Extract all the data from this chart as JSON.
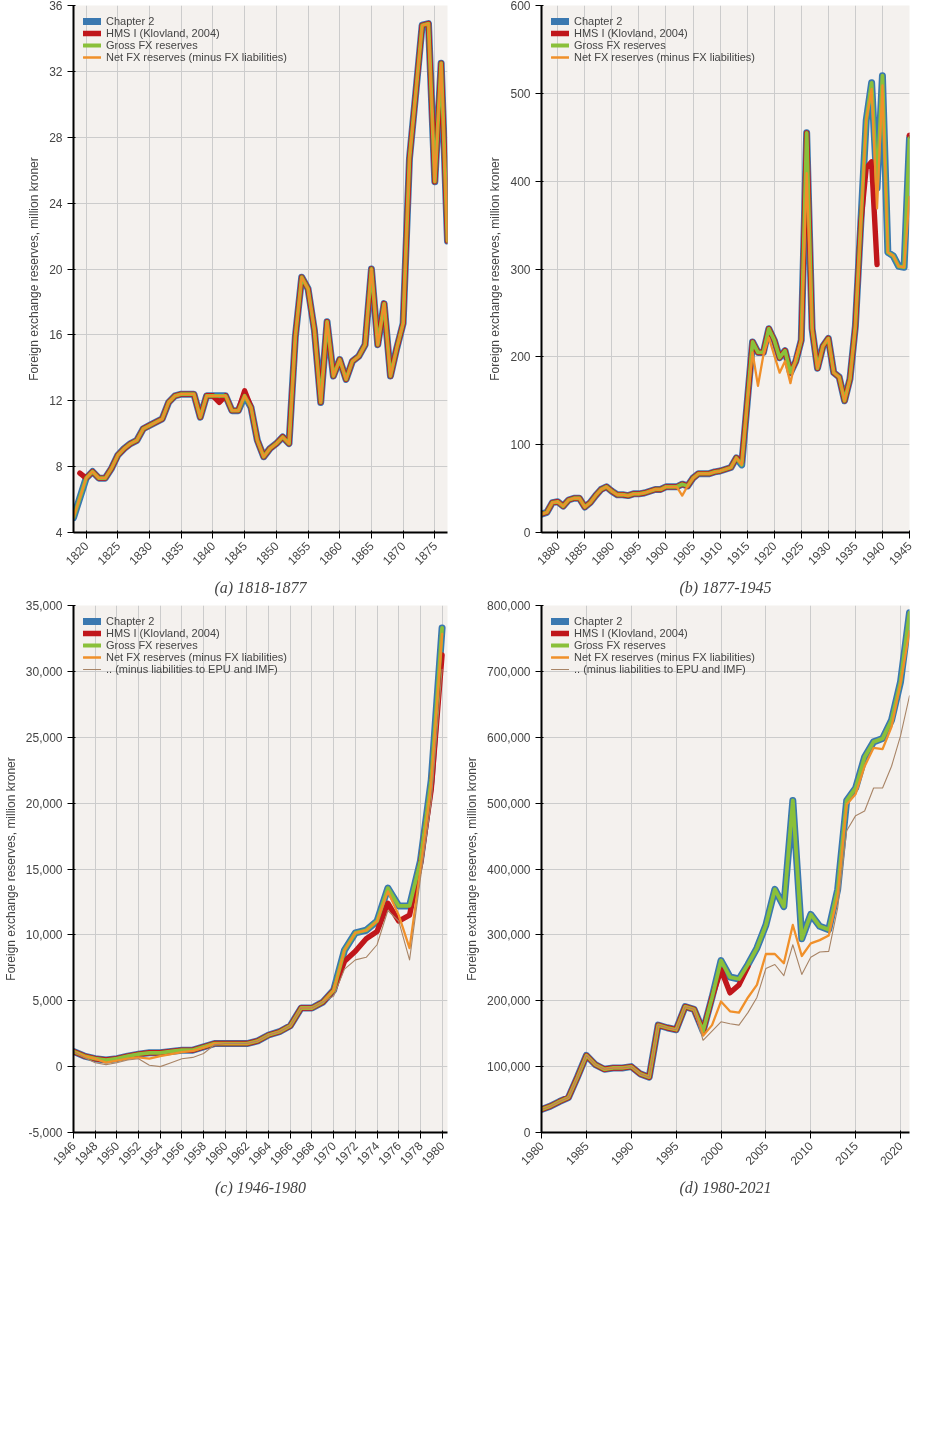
{
  "chart_data": [
    {
      "type": "line",
      "title": "(a) 1818-1877",
      "ylabel": "Foreign exchange reserves, million kroner",
      "grid": true,
      "legend": "top left",
      "xlim": [
        1818,
        1877
      ],
      "ylim": [
        4,
        36
      ],
      "xticks": [
        1820,
        1825,
        1830,
        1835,
        1840,
        1845,
        1850,
        1855,
        1860,
        1865,
        1870,
        1875
      ],
      "yticks": [
        4,
        8,
        12,
        16,
        20,
        24,
        28,
        32,
        36
      ],
      "x": [
        1818,
        1819,
        1820,
        1821,
        1822,
        1823,
        1824,
        1825,
        1826,
        1827,
        1828,
        1829,
        1830,
        1831,
        1832,
        1833,
        1834,
        1835,
        1836,
        1837,
        1838,
        1839,
        1840,
        1841,
        1842,
        1843,
        1844,
        1845,
        1846,
        1847,
        1848,
        1849,
        1850,
        1851,
        1852,
        1853,
        1854,
        1855,
        1856,
        1857,
        1858,
        1859,
        1860,
        1861,
        1862,
        1863,
        1864,
        1865,
        1866,
        1867,
        1868,
        1869,
        1870,
        1871,
        1872,
        1873,
        1874,
        1875,
        1876,
        1877
      ],
      "series": [
        {
          "name": "Chapter 2",
          "color": "#3a78b0",
          "values": [
            4.9,
            6.1,
            7.3,
            7.7,
            7.3,
            7.3,
            7.9,
            8.7,
            9.1,
            9.4,
            9.6,
            10.3,
            10.5,
            10.7,
            10.9,
            11.9,
            12.3,
            12.4,
            12.4,
            12.4,
            11.0,
            12.3,
            12.3,
            12.3,
            12.3,
            11.4,
            11.4,
            12.3,
            11.6,
            9.6,
            8.6,
            9.1,
            9.4,
            9.8,
            9.4,
            15.9,
            19.5,
            18.8,
            16.3,
            11.9,
            16.8,
            13.5,
            14.5,
            13.3,
            14.4,
            14.7,
            15.4,
            20.0,
            15.4,
            17.9,
            13.5,
            15.2,
            16.7,
            26.7,
            30.7,
            34.8,
            34.9,
            25.3,
            32.5,
            21.7
          ]
        },
        {
          "name": "HMS I (Klovland, 2004)",
          "color": "#c0161b",
          "values": [
            null,
            7.6,
            7.3,
            7.7,
            7.3,
            7.3,
            7.9,
            8.7,
            9.1,
            9.4,
            9.6,
            10.3,
            10.5,
            10.7,
            10.9,
            11.9,
            12.3,
            12.4,
            12.4,
            12.4,
            11.0,
            12.3,
            12.3,
            11.9,
            12.3,
            11.4,
            11.4,
            12.6,
            11.6,
            9.6,
            8.6,
            9.1,
            9.4,
            9.8,
            9.4,
            15.9,
            19.5,
            18.8,
            16.3,
            11.9,
            16.8,
            13.5,
            14.5,
            13.3,
            14.4,
            14.7,
            15.4,
            20.0,
            15.4,
            17.9,
            13.5,
            15.2,
            16.7,
            26.7,
            30.7,
            34.8,
            34.9,
            25.3,
            32.5,
            21.7
          ]
        },
        {
          "name": "Gross FX reserves",
          "color": "#8ac03a",
          "values": [
            4.9,
            6.1,
            7.3,
            7.7,
            7.3,
            7.3,
            7.9,
            8.7,
            9.1,
            9.4,
            9.6,
            10.3,
            10.5,
            10.7,
            10.9,
            11.9,
            12.3,
            12.4,
            12.4,
            12.4,
            11.0,
            12.3,
            12.3,
            12.3,
            12.3,
            11.4,
            11.4,
            12.3,
            11.6,
            9.6,
            8.6,
            9.1,
            9.4,
            9.8,
            9.4,
            15.9,
            19.5,
            18.8,
            16.3,
            11.9,
            16.8,
            13.5,
            14.5,
            13.3,
            14.4,
            14.7,
            15.4,
            20.0,
            15.4,
            17.9,
            13.5,
            15.2,
            16.7,
            26.7,
            30.7,
            34.8,
            34.9,
            25.3,
            32.5,
            21.7
          ]
        },
        {
          "name": "Net FX reserves (minus FX liabilities)",
          "color": "#f0902a",
          "values": [
            4.9,
            6.1,
            7.3,
            7.7,
            7.3,
            7.3,
            7.9,
            8.7,
            9.1,
            9.4,
            9.6,
            10.3,
            10.5,
            10.7,
            10.9,
            11.9,
            12.3,
            12.4,
            12.4,
            12.4,
            11.0,
            12.3,
            12.3,
            12.3,
            12.3,
            11.4,
            11.4,
            12.3,
            11.6,
            9.6,
            8.6,
            9.1,
            9.4,
            9.8,
            9.4,
            15.9,
            19.5,
            18.8,
            16.3,
            11.9,
            16.8,
            13.5,
            14.5,
            13.3,
            14.4,
            14.7,
            15.4,
            20.0,
            15.4,
            17.9,
            13.5,
            15.2,
            16.7,
            26.7,
            30.7,
            34.8,
            34.9,
            25.3,
            32.5,
            21.7
          ]
        }
      ]
    },
    {
      "type": "line",
      "title": "(b) 1877-1945",
      "ylabel": "Foreign exchange reserves, million kroner",
      "grid": true,
      "legend": "top left",
      "xlim": [
        1877,
        1945
      ],
      "ylim": [
        0,
        600
      ],
      "xticks": [
        1880,
        1885,
        1890,
        1895,
        1900,
        1905,
        1910,
        1915,
        1920,
        1925,
        1930,
        1935,
        1940,
        1945
      ],
      "yticks": [
        0,
        100,
        200,
        300,
        400,
        500,
        600
      ],
      "x": [
        1877,
        1878,
        1879,
        1880,
        1881,
        1882,
        1883,
        1884,
        1885,
        1886,
        1887,
        1888,
        1889,
        1890,
        1891,
        1892,
        1893,
        1894,
        1895,
        1896,
        1897,
        1898,
        1899,
        1900,
        1901,
        1902,
        1903,
        1904,
        1905,
        1906,
        1907,
        1908,
        1909,
        1910,
        1911,
        1912,
        1913,
        1914,
        1915,
        1916,
        1917,
        1918,
        1919,
        1920,
        1921,
        1922,
        1923,
        1924,
        1925,
        1926,
        1927,
        1928,
        1929,
        1930,
        1931,
        1932,
        1933,
        1934,
        1935,
        1936,
        1937,
        1938,
        1939,
        1940,
        1941,
        1942,
        1943,
        1944,
        1945
      ],
      "series": [
        {
          "name": "Chapter 2",
          "color": "#3a78b0",
          "values": [
            21,
            23,
            34,
            35,
            30,
            37,
            39,
            39,
            29,
            34,
            42,
            49,
            52,
            47,
            43,
            43,
            42,
            44,
            44,
            45,
            47,
            49,
            49,
            52,
            52,
            52,
            55,
            53,
            62,
            67,
            67,
            67,
            69,
            70,
            72,
            74,
            85,
            77,
            147,
            217,
            205,
            205,
            232,
            219,
            199,
            207,
            182,
            195,
            219,
            455,
            232,
            187,
            212,
            221,
            182,
            177,
            150,
            175,
            235,
            352,
            469,
            512,
            392,
            520,
            319,
            315,
            303,
            302,
            449
          ]
        },
        {
          "name": "HMS I (Klovland, 2004)",
          "color": "#c0161b",
          "values": [
            21,
            23,
            34,
            35,
            30,
            37,
            39,
            39,
            29,
            34,
            42,
            49,
            52,
            47,
            43,
            43,
            42,
            44,
            44,
            45,
            47,
            49,
            49,
            52,
            52,
            52,
            55,
            53,
            62,
            67,
            67,
            67,
            69,
            70,
            72,
            74,
            85,
            80,
            147,
            217,
            205,
            205,
            232,
            219,
            199,
            207,
            182,
            195,
            219,
            455,
            232,
            187,
            212,
            221,
            182,
            177,
            150,
            175,
            235,
            352,
            415,
            422,
            305,
            null,
            null,
            null,
            null,
            null,
            452
          ]
        },
        {
          "name": "Gross FX reserves",
          "color": "#8ac03a",
          "values": [
            21,
            23,
            34,
            35,
            30,
            37,
            39,
            39,
            29,
            34,
            42,
            49,
            52,
            47,
            43,
            43,
            42,
            44,
            44,
            45,
            47,
            49,
            49,
            52,
            52,
            52,
            55,
            53,
            62,
            67,
            67,
            67,
            69,
            70,
            72,
            74,
            85,
            77,
            147,
            217,
            205,
            205,
            232,
            219,
            199,
            207,
            182,
            195,
            219,
            455,
            232,
            187,
            212,
            221,
            182,
            177,
            150,
            175,
            235,
            352,
            469,
            512,
            392,
            520,
            319,
            315,
            303,
            302,
            449
          ]
        },
        {
          "name": "Net FX reserves (minus FX liabilities)",
          "color": "#f0902a",
          "values": [
            21,
            23,
            34,
            35,
            30,
            37,
            39,
            39,
            29,
            34,
            42,
            49,
            52,
            47,
            43,
            43,
            42,
            44,
            44,
            45,
            47,
            49,
            49,
            52,
            52,
            52,
            42,
            53,
            62,
            67,
            67,
            67,
            69,
            70,
            72,
            74,
            85,
            77,
            147,
            205,
            167,
            202,
            222,
            202,
            182,
            195,
            170,
            199,
            219,
            409,
            232,
            187,
            212,
            221,
            182,
            177,
            150,
            175,
            235,
            352,
            469,
            505,
            369,
            509,
            319,
            315,
            303,
            302,
            382
          ]
        }
      ]
    },
    {
      "type": "line",
      "title": "(c) 1946-1980",
      "ylabel": "Foreign exchange reserves, million kroner",
      "grid": true,
      "legend": "top left",
      "xlim": [
        1946,
        1980.5
      ],
      "ylim": [
        -5000,
        35000
      ],
      "xticks": [
        1946,
        1948,
        1950,
        1952,
        1954,
        1956,
        1958,
        1960,
        1962,
        1964,
        1966,
        1968,
        1970,
        1972,
        1974,
        1976,
        1978,
        1980
      ],
      "yticks": [
        {
          "value": -5000,
          "label": "-5,000"
        },
        0,
        {
          "value": 5000,
          "label": "5,000"
        },
        {
          "value": 10000,
          "label": "10,000"
        },
        {
          "value": 15000,
          "label": "15,000"
        },
        {
          "value": 20000,
          "label": "20,000"
        },
        {
          "value": 25000,
          "label": "25,000"
        },
        {
          "value": 30000,
          "label": "30,000"
        },
        {
          "value": 35000,
          "label": "35,000"
        }
      ],
      "x": [
        1946,
        1947,
        1948,
        1949,
        1950,
        1951,
        1952,
        1953,
        1954,
        1955,
        1956,
        1957,
        1958,
        1959,
        1960,
        1961,
        1962,
        1963,
        1964,
        1965,
        1966,
        1967,
        1968,
        1969,
        1970,
        1971,
        1972,
        1973,
        1974,
        1975,
        1976,
        1977,
        1978,
        1979,
        1980
      ],
      "series": [
        {
          "name": "Chapter 2",
          "color": "#3a78b0",
          "values": [
            1150,
            800,
            600,
            500,
            600,
            800,
            950,
            1050,
            1050,
            1150,
            1250,
            1250,
            1500,
            1750,
            1750,
            1750,
            1750,
            1950,
            2400,
            2650,
            3100,
            4450,
            4450,
            4900,
            5800,
            8850,
            10150,
            10350,
            11050,
            13550,
            12200,
            12200,
            15600,
            21750,
            33300
          ]
        },
        {
          "name": "HMS I (Klovland, 2004)",
          "color": "#c0161b",
          "values": [
            1150,
            800,
            600,
            500,
            600,
            800,
            950,
            1050,
            1050,
            1150,
            1250,
            1250,
            1500,
            1750,
            1750,
            1750,
            1750,
            1950,
            2400,
            2650,
            3100,
            4450,
            4450,
            4900,
            5800,
            8000,
            8750,
            9700,
            10250,
            12400,
            11050,
            11500,
            15350,
            21050,
            31250
          ]
        },
        {
          "name": "Gross FX reserves",
          "color": "#8ac03a",
          "values": [
            1150,
            800,
            600,
            500,
            600,
            800,
            950,
            1050,
            1050,
            1150,
            1250,
            1250,
            1500,
            1750,
            1750,
            1750,
            1750,
            1950,
            2400,
            2650,
            3100,
            4450,
            4450,
            4900,
            5800,
            8850,
            10150,
            10350,
            11050,
            13550,
            12200,
            12200,
            15600,
            21750,
            33300
          ]
        },
        {
          "name": "Net FX reserves (minus FX liabilities)",
          "color": "#f0902a",
          "values": [
            1150,
            800,
            600,
            300,
            450,
            600,
            700,
            600,
            800,
            950,
            1100,
            1200,
            1450,
            1750,
            1750,
            1750,
            1750,
            1950,
            2400,
            2650,
            3100,
            4450,
            4450,
            4900,
            5800,
            8850,
            10150,
            10350,
            11050,
            13300,
            11500,
            9000,
            14900,
            21500,
            32850
          ]
        },
        {
          "name": ".. (minus liabilities to EPU and IMF)",
          "color": "#a88466",
          "values": [
            1150,
            700,
            300,
            150,
            300,
            500,
            600,
            100,
            0,
            300,
            600,
            700,
            1000,
            1650,
            1750,
            1750,
            1750,
            1950,
            2400,
            2650,
            3100,
            4450,
            4450,
            4900,
            5350,
            7400,
            8100,
            8300,
            9250,
            11850,
            11050,
            8100,
            14250,
            20150,
            30150
          ]
        }
      ]
    },
    {
      "type": "line",
      "title": "(d) 1980-2021",
      "ylabel": "Foreign exchange reserves, million kroner",
      "grid": true,
      "legend": "top left",
      "xlim": [
        1980,
        2021
      ],
      "ylim": [
        0,
        800000
      ],
      "xticks": [
        1980,
        1985,
        1990,
        1995,
        2000,
        2005,
        2010,
        2015,
        2020
      ],
      "yticks": [
        {
          "value": 0,
          "label": "0"
        },
        {
          "value": 100000,
          "label": "100,000"
        },
        {
          "value": 200000,
          "label": "200,000"
        },
        {
          "value": 300000,
          "label": "300,000"
        },
        {
          "value": 400000,
          "label": "400,000"
        },
        {
          "value": 500000,
          "label": "500,000"
        },
        {
          "value": 600000,
          "label": "600,000"
        },
        {
          "value": 700000,
          "label": "700,000"
        },
        {
          "value": 800000,
          "label": "800,000"
        }
      ],
      "x": [
        1980,
        1981,
        1982,
        1983,
        1984,
        1985,
        1986,
        1987,
        1988,
        1989,
        1990,
        1991,
        1992,
        1993,
        1994,
        1995,
        1996,
        1997,
        1998,
        1999,
        2000,
        2001,
        2002,
        2003,
        2004,
        2005,
        2006,
        2007,
        2008,
        2009,
        2010,
        2011,
        2012,
        2013,
        2014,
        2015,
        2016,
        2017,
        2018,
        2019,
        2020,
        2021
      ],
      "series": [
        {
          "name": "Chapter 2",
          "color": "#3a78b0",
          "values": [
            35000,
            40000,
            47000,
            53000,
            84000,
            117000,
            103000,
            96000,
            98000,
            98000,
            100000,
            89000,
            84000,
            163000,
            159000,
            156000,
            191000,
            187000,
            154000,
            205000,
            261000,
            236000,
            233000,
            255000,
            280000,
            315000,
            369000,
            343000,
            504000,
            294000,
            331000,
            313000,
            308000,
            369000,
            504000,
            523000,
            570000,
            593000,
            598000,
            626000,
            684000,
            789000
          ]
        },
        {
          "name": "HMS I (Klovland, 2004)",
          "color": "#c0161b",
          "values": [
            35000,
            40000,
            47000,
            53000,
            84000,
            117000,
            103000,
            96000,
            98000,
            98000,
            100000,
            89000,
            84000,
            163000,
            159000,
            156000,
            191000,
            187000,
            154000,
            205000,
            247000,
            212000,
            224000,
            252000,
            null,
            null,
            null,
            null,
            null,
            null,
            null,
            null,
            null,
            null,
            null,
            null,
            null,
            null,
            null,
            null,
            null,
            null
          ]
        },
        {
          "name": "Gross FX reserves",
          "color": "#8ac03a",
          "values": [
            35000,
            40000,
            47000,
            53000,
            84000,
            117000,
            103000,
            96000,
            98000,
            98000,
            100000,
            89000,
            84000,
            163000,
            159000,
            156000,
            191000,
            187000,
            154000,
            205000,
            261000,
            236000,
            233000,
            255000,
            280000,
            315000,
            369000,
            343000,
            504000,
            294000,
            331000,
            313000,
            308000,
            369000,
            504000,
            523000,
            570000,
            593000,
            598000,
            626000,
            684000,
            789000
          ]
        },
        {
          "name": "Net FX reserves (minus FX liabilities)",
          "color": "#f0902a",
          "values": [
            35000,
            40000,
            47000,
            53000,
            84000,
            117000,
            103000,
            96000,
            98000,
            98000,
            100000,
            89000,
            84000,
            163000,
            159000,
            156000,
            191000,
            187000,
            147000,
            163000,
            199000,
            184000,
            182000,
            205000,
            224000,
            271000,
            271000,
            257000,
            315000,
            268000,
            287000,
            292000,
            299000,
            359000,
            498000,
            514000,
            556000,
            584000,
            582000,
            616000,
            682000,
            761000
          ]
        },
        {
          "name": ".. (minus liabilities to EPU and IMF)",
          "color": "#a88466",
          "values": [
            35000,
            40000,
            47000,
            53000,
            84000,
            117000,
            103000,
            96000,
            98000,
            98000,
            100000,
            89000,
            84000,
            163000,
            159000,
            156000,
            191000,
            187000,
            140000,
            154000,
            168000,
            165000,
            163000,
            182000,
            205000,
            249000,
            255000,
            238000,
            285000,
            240000,
            266000,
            274000,
            275000,
            341000,
            458000,
            481000,
            488000,
            523000,
            523000,
            556000,
            602000,
            663000
          ]
        }
      ]
    }
  ]
}
